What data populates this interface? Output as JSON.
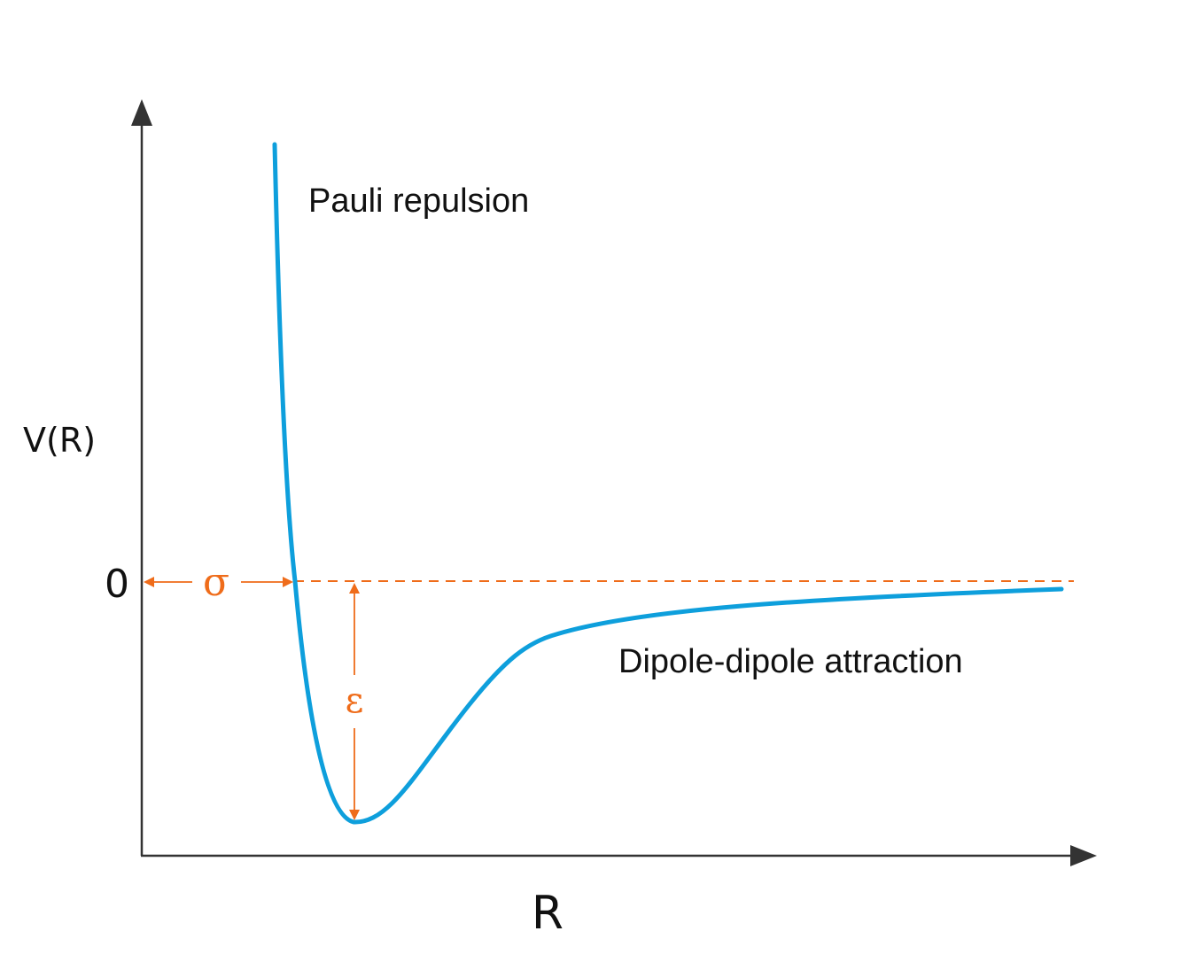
{
  "labels": {
    "y_axis": "V(R)",
    "x_axis": "R",
    "zero_tick": "0",
    "sigma": "σ",
    "epsilon": "ε",
    "repulsion": "Pauli repulsion",
    "attraction": "Dipole-dipole attraction"
  },
  "colors": {
    "curve": "#0e9fdc",
    "annotation": "#ef6c1a",
    "axis": "#333333",
    "text": "#111111"
  }
}
